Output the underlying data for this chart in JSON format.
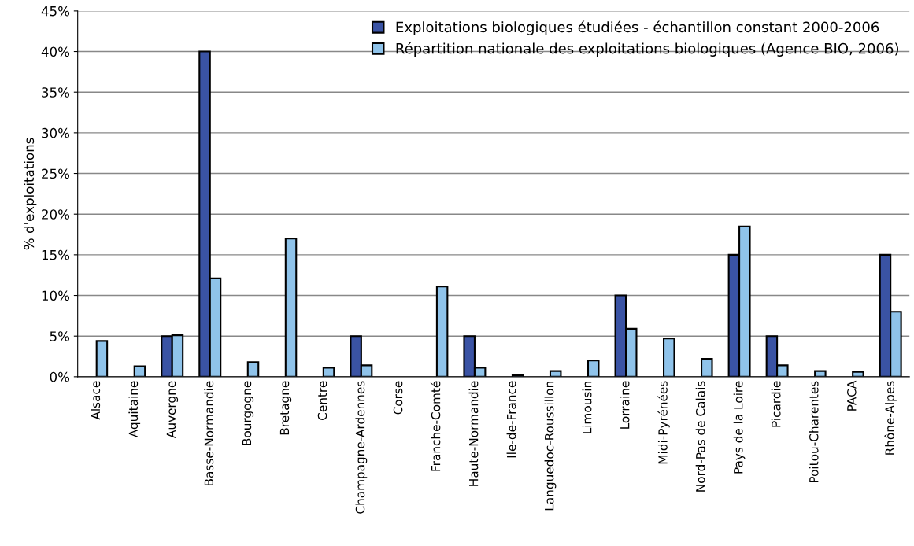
{
  "chart_data": {
    "type": "bar",
    "ylabel": "% d'exploitations",
    "categories": [
      "Alsace",
      "Aquitaine",
      "Auvergne",
      "Basse-Normandie",
      "Bourgogne",
      "Bretagne",
      "Centre",
      "Champagne-Ardennes",
      "Corse",
      "Franche-Comté",
      "Haute-Normandie",
      "Ile-de-France",
      "Languedoc-Roussillon",
      "Limousin",
      "Lorraine",
      "Midi-Pyrénées",
      "Nord-Pas de Calais",
      "Pays de la Loire",
      "Picardie",
      "Poitou-Charentes",
      "PACA",
      "Rhône-Alpes"
    ],
    "series": [
      {
        "name": "Exploitations biologiques étudiées - échantillon constant 2000-2006",
        "color": "#3a53a4",
        "values": [
          null,
          null,
          5,
          40,
          null,
          null,
          null,
          5,
          null,
          null,
          5,
          null,
          null,
          null,
          10,
          null,
          null,
          15,
          5,
          null,
          null,
          15
        ]
      },
      {
        "name": "Répartition nationale des exploitations biologiques (Agence BIO, 2006)",
        "color": "#8fc3ea",
        "values": [
          4.4,
          1.3,
          5.1,
          12.1,
          1.8,
          17,
          1.1,
          1.4,
          null,
          11.1,
          1.1,
          0.2,
          0.7,
          2,
          5.9,
          4.7,
          2.2,
          18.5,
          1.4,
          0.7,
          0.6,
          8
        ]
      }
    ],
    "ylim": [
      0,
      45
    ],
    "yticks": [
      {
        "value": 0,
        "label": "0%"
      },
      {
        "value": 5,
        "label": "5%"
      },
      {
        "value": 10,
        "label": "10%"
      },
      {
        "value": 15,
        "label": "15%"
      },
      {
        "value": 20,
        "label": "20%"
      },
      {
        "value": 25,
        "label": "25%"
      },
      {
        "value": 30,
        "label": "30%"
      },
      {
        "value": 35,
        "label": "35%"
      },
      {
        "value": 40,
        "label": "40%"
      },
      {
        "value": 45,
        "label": "45%"
      }
    ],
    "grid": "y",
    "legend": "top right"
  }
}
